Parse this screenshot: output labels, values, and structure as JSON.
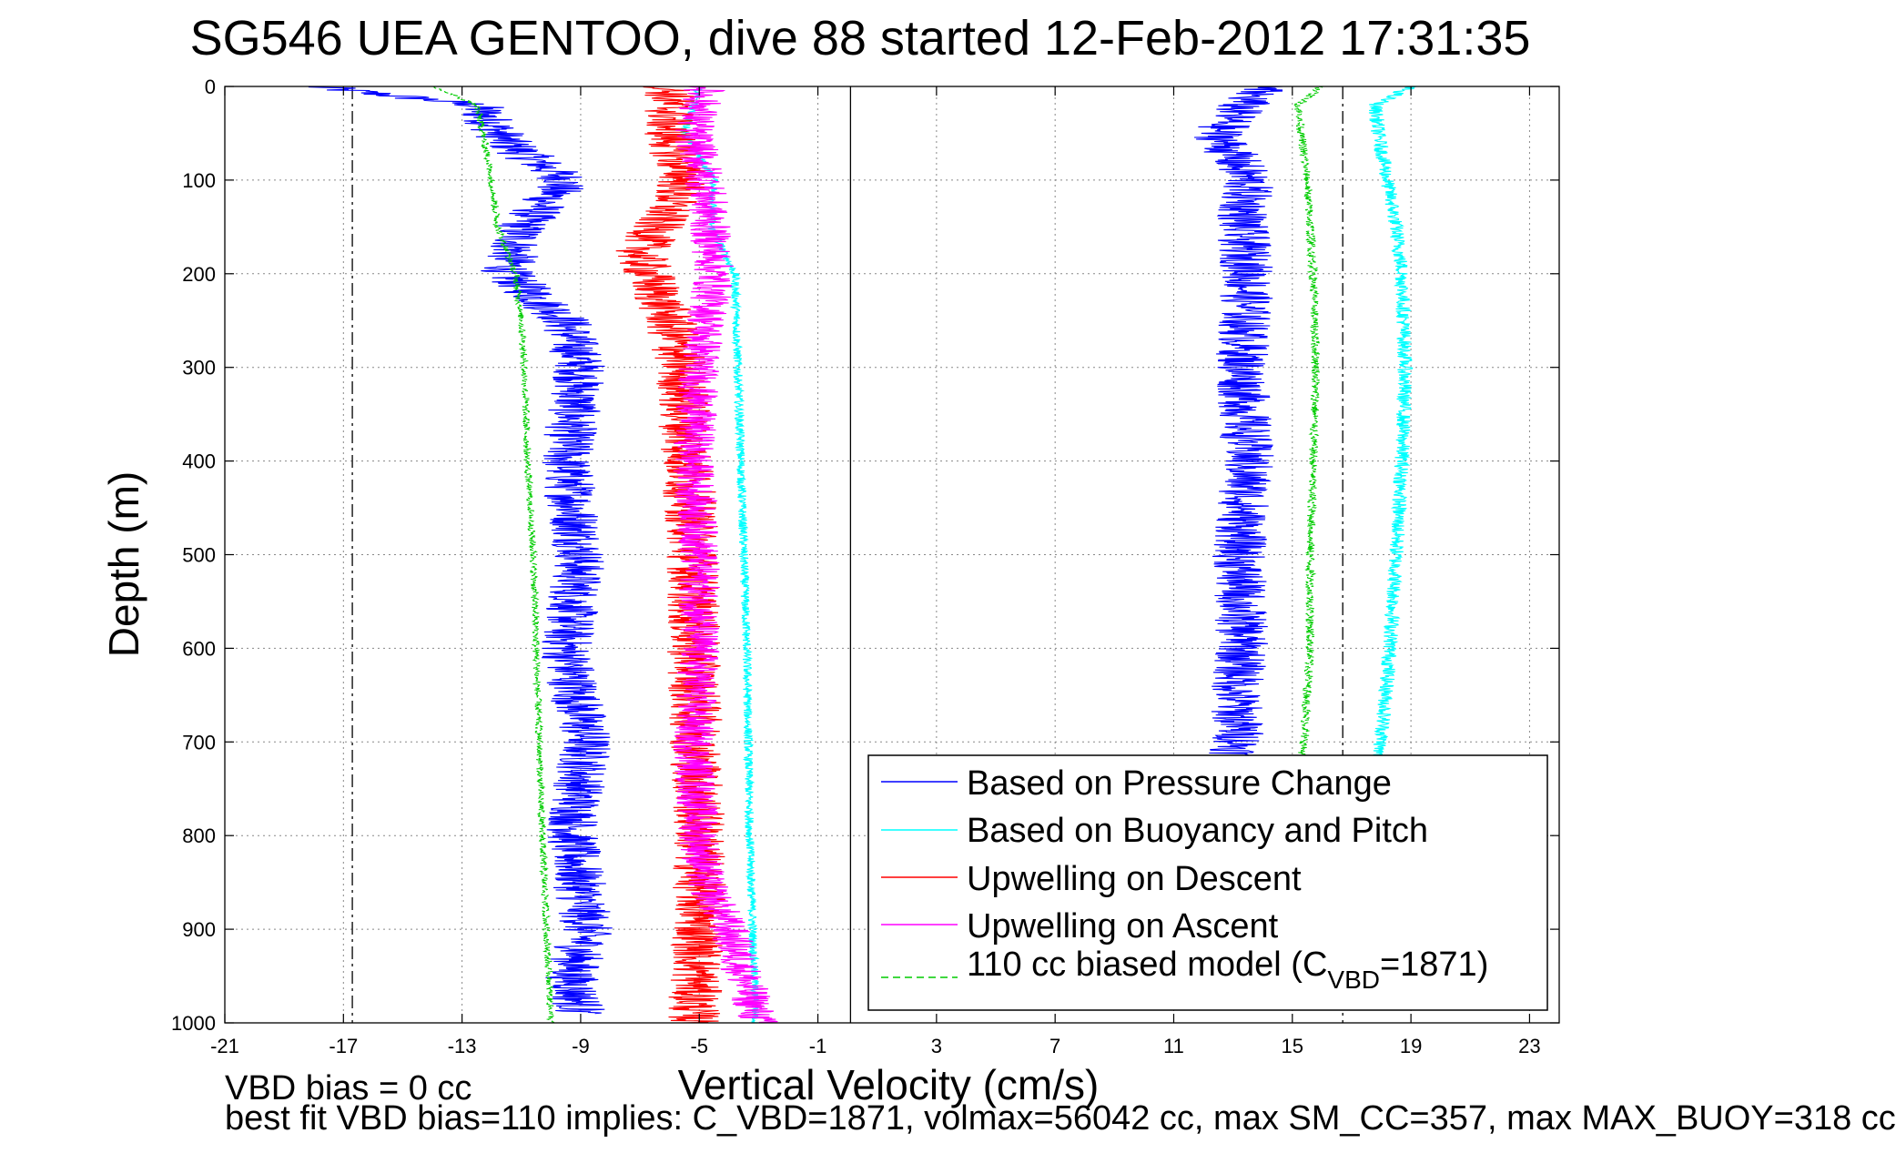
{
  "chart_data": {
    "type": "line",
    "title": "SG546 UEA GENTOO, dive 88 started 12-Feb-2012 17:31:35",
    "xlabel": "Vertical Velocity (cm/s)",
    "ylabel": "Depth (m)",
    "xlim": [
      -21,
      24
    ],
    "ylim": [
      0,
      1000
    ],
    "y_reversed": true,
    "grid": true,
    "x_ticks": [
      "-21",
      "-17",
      "-13",
      "-9",
      "-5",
      "-1",
      "3",
      "7",
      "11",
      "15",
      "19",
      "23"
    ],
    "y_ticks": [
      "0",
      "100",
      "200",
      "300",
      "400",
      "500",
      "600",
      "700",
      "800",
      "900",
      "1000"
    ],
    "vertical_lines": [
      {
        "x": -16.7,
        "style": "dash-dot",
        "color": "#000000"
      },
      {
        "x": 0.1,
        "style": "solid",
        "color": "#000000"
      },
      {
        "x": 16.7,
        "style": "dash-dot",
        "color": "#000000"
      }
    ],
    "legend_position": "bottom-right",
    "series": [
      {
        "name": "Based on Pressure Change",
        "color": "#0000ff",
        "style": "solid",
        "noise": 0.9,
        "x": [
          -18,
          -12.5,
          -11.5,
          -9.5,
          -11,
          -11.5,
          -9.5,
          -9,
          -9.5,
          -9,
          -9.5,
          -8.8,
          -9.3,
          -8.8,
          -9.3,
          -9
        ],
        "y": [
          0,
          20,
          60,
          100,
          150,
          200,
          250,
          300,
          400,
          500,
          600,
          700,
          800,
          900,
          950,
          990
        ]
      },
      {
        "name": "Based on Buoyancy and Pitch",
        "color": "#00ffff",
        "style": "solid",
        "noise": 0.15,
        "x": [
          -5,
          -5.5,
          -4.5,
          -4.6,
          -3.8,
          -3.7,
          -3.6,
          -3.5,
          -3.4,
          -3.3,
          -3.1
        ],
        "y": [
          0,
          50,
          100,
          150,
          200,
          300,
          400,
          500,
          600,
          800,
          1000
        ]
      },
      {
        "name": "Upwelling on Descent",
        "color": "#ff0000",
        "style": "solid",
        "noise": 0.9,
        "x": [
          -6,
          -6,
          -5.5,
          -7,
          -6,
          -5.6,
          -5.4,
          -5.2,
          -5.2,
          -5,
          -5,
          -5.2
        ],
        "y": [
          0,
          50,
          100,
          180,
          250,
          300,
          400,
          500,
          600,
          800,
          900,
          1000
        ]
      },
      {
        "name": "Upwelling on Ascent",
        "color": "#ff00ff",
        "style": "solid",
        "noise": 0.7,
        "x": [
          -4.8,
          -5.2,
          -4.8,
          -4.5,
          -5,
          -5.2,
          -5,
          -5,
          -5.2,
          -5,
          -4.8,
          -4,
          -3
        ],
        "y": [
          0,
          50,
          100,
          200,
          300,
          400,
          500,
          600,
          700,
          800,
          850,
          900,
          1000
        ]
      },
      {
        "name": "110 cc biased model (C_VBD=1871)",
        "color": "#00cc00",
        "style": "dashed",
        "noise": 0.12,
        "x": [
          -14,
          -12.5,
          -12.3,
          -12,
          -11.8,
          -11.2,
          -11,
          -10.9,
          -10.8,
          -10.6,
          -10.5,
          -10.3,
          -10
        ],
        "y": [
          0,
          20,
          50,
          100,
          150,
          200,
          250,
          300,
          400,
          500,
          600,
          800,
          1000
        ]
      },
      {
        "color": "#0000ff",
        "style": "solid",
        "noise": 0.9,
        "x": [
          14,
          13.3,
          12.5,
          13.5,
          13.3,
          13.5,
          13.3,
          13.5,
          13.2,
          13.3,
          13.1,
          13.2,
          13.0
        ],
        "y": [
          0,
          20,
          50,
          100,
          150,
          200,
          300,
          400,
          500,
          600,
          650,
          700,
          720
        ]
      },
      {
        "color": "#00cc00",
        "style": "dashed",
        "noise": 0.15,
        "x": [
          16,
          15.2,
          15.3,
          15.5,
          15.6,
          15.7,
          15.8,
          15.7,
          15.6,
          15.6,
          15.4,
          15.3
        ],
        "y": [
          0,
          20,
          50,
          100,
          150,
          200,
          300,
          400,
          500,
          600,
          700,
          720
        ]
      },
      {
        "color": "#00ffff",
        "style": "solid",
        "noise": 0.25,
        "x": [
          19,
          17.8,
          17.9,
          18.2,
          18.5,
          18.7,
          18.8,
          18.7,
          18.5,
          18.3,
          18.0,
          17.8
        ],
        "y": [
          0,
          20,
          50,
          100,
          150,
          200,
          300,
          400,
          500,
          600,
          700,
          720
        ]
      }
    ],
    "annotations": [
      "VBD bias = 0 cc",
      "best fit VBD bias=110 implies: C_VBD=1871, volmax=56042 cc, max SM_CC=357, max MAX_BUOY=318 cc"
    ]
  },
  "legend": {
    "pressure": "Based on Pressure Change",
    "buoyancy": "Based on Buoyancy and Pitch",
    "descent": "Upwelling on Descent",
    "ascent": "Upwelling on Ascent",
    "model_prefix": "110 cc biased model (C",
    "model_sub": "VBD",
    "model_suffix": "=1871)"
  }
}
